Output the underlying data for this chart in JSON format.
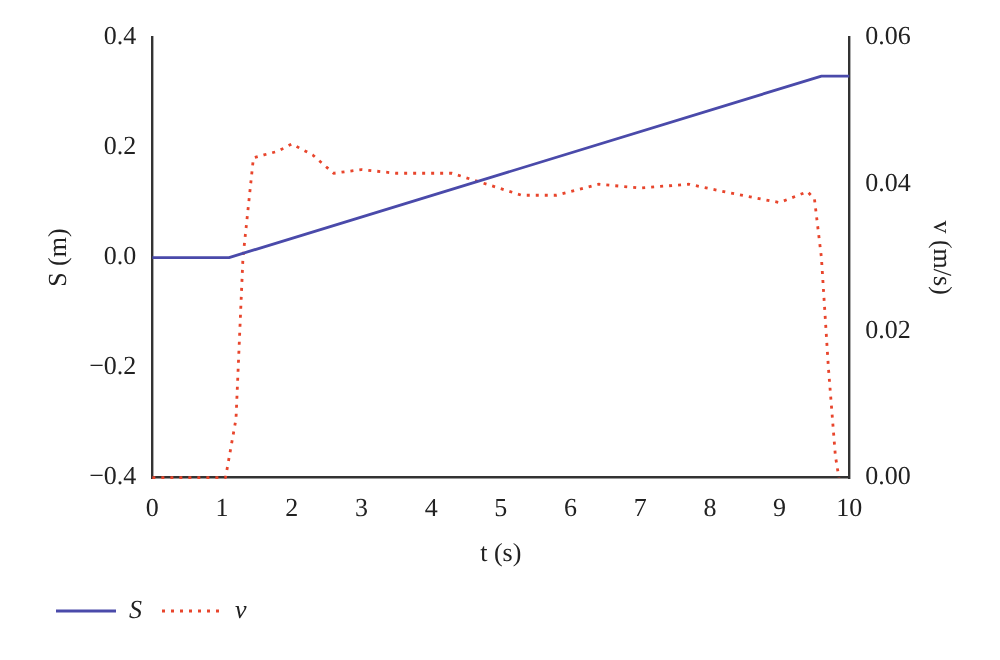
{
  "chart_data": {
    "type": "line",
    "xlabel": "t (s)",
    "ylabel": "S (m)",
    "y2label": "v (m/s)",
    "xlim": [
      0,
      10
    ],
    "xticks": [
      0,
      1,
      2,
      3,
      4,
      5,
      6,
      7,
      8,
      9,
      10
    ],
    "ylim": [
      -0.4,
      0.4
    ],
    "yticks": [
      {
        "value": -0.4,
        "label": "−0.4"
      },
      {
        "value": -0.2,
        "label": "−0.2"
      },
      {
        "value": 0,
        "label": "0.0"
      },
      {
        "value": 0.2,
        "label": "0.2"
      },
      {
        "value": 0.4,
        "label": "0.4"
      }
    ],
    "y2lim": [
      0,
      0.06
    ],
    "y2ticks": [
      {
        "value": 0,
        "label": "0.00"
      },
      {
        "value": 0.02,
        "label": "0.02"
      },
      {
        "value": 0.04,
        "label": "0.04"
      },
      {
        "value": 0.06,
        "label": "0.06"
      }
    ],
    "grid": false,
    "legend": "bottom left",
    "marker": "none",
    "series": [
      {
        "name": "S",
        "color": "#4a4aaa",
        "line_style": "solid",
        "x": [
          0,
          1.1,
          9.6,
          10
        ],
        "values": [
          0,
          0,
          0.33,
          0.33
        ]
      },
      {
        "name": "v",
        "color": "#e8452c",
        "line_style": "dotted",
        "axis": "y2",
        "x": [
          0,
          1.05,
          1.2,
          1.3,
          1.45,
          1.6,
          1.8,
          2.0,
          2.3,
          2.6,
          3,
          3.5,
          4.3,
          4.8,
          5.3,
          5.8,
          6.4,
          7,
          7.7,
          8.2,
          9,
          9.4,
          9.5,
          9.6,
          9.7,
          9.8,
          9.85
        ],
        "values": [
          0,
          0,
          0.008,
          0.03,
          0.0436,
          0.044,
          0.0445,
          0.0455,
          0.044,
          0.0415,
          0.042,
          0.0415,
          0.0415,
          0.04,
          0.0385,
          0.0385,
          0.04,
          0.0395,
          0.04,
          0.039,
          0.0375,
          0.039,
          0.038,
          0.03,
          0.015,
          0.003,
          0
        ]
      }
    ]
  }
}
